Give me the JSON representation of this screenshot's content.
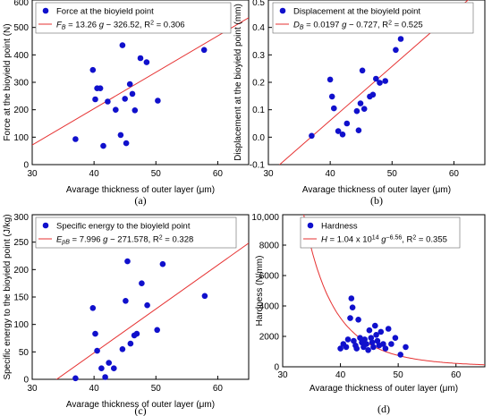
{
  "chart_data": [
    {
      "type": "scatter",
      "panel_label": "(a)",
      "xlabel": "Avarage thickness of outer layer (μm)",
      "ylabel": "Force at the bioyield point (N)",
      "xlim": [
        30,
        65
      ],
      "ylim": [
        0,
        600
      ],
      "xticks": [
        "30",
        "40",
        "50",
        "60"
      ],
      "xtick_values": [
        30,
        40,
        50,
        60
      ],
      "yticks": [
        "0",
        "100",
        "200",
        "300",
        "400",
        "500",
        "600"
      ],
      "ytick_values": [
        0,
        100,
        200,
        300,
        400,
        500,
        600
      ],
      "legend": {
        "placement": "top-left",
        "points_label": "Force at the bioyield point",
        "fit_label": "F_B = 13.26 g − 326.52, R² = 0.306"
      },
      "series": [
        {
          "x": [
            37,
            39.8,
            40.2,
            40.5,
            41,
            41.5,
            42.2,
            43.5,
            44.3,
            44.6,
            45,
            45.2,
            45.8,
            46.2,
            46.6,
            47.5,
            48.5,
            50.3,
            51,
            57.8
          ],
          "y": [
            93,
            345,
            238,
            278,
            278,
            68,
            230,
            200,
            108,
            435,
            240,
            78,
            293,
            258,
            198,
            388,
            373,
            233,
            498,
            418
          ]
        }
      ],
      "fit": {
        "kind": "linear",
        "slope": 13.26,
        "intercept": -326.52
      },
      "colors": {
        "points": "#1010cc",
        "fit": "#e63232"
      }
    },
    {
      "type": "scatter",
      "panel_label": "(b)",
      "xlabel": "Avarage thickness of outer layer (μm)",
      "ylabel": "Displacement at the bioyield point (mm)",
      "xlim": [
        30,
        65
      ],
      "ylim": [
        -0.1,
        0.5
      ],
      "xticks": [
        "30",
        "40",
        "50",
        "60"
      ],
      "xtick_values": [
        30,
        40,
        50,
        60
      ],
      "yticks": [
        "-0.1",
        "0.0",
        "0.1",
        "0.2",
        "0.3",
        "0.4",
        "0.5"
      ],
      "ytick_values": [
        -0.1,
        0.0,
        0.1,
        0.2,
        0.3,
        0.4,
        0.5
      ],
      "legend": {
        "placement": "top-left",
        "points_label": "Displacement at the bioyield point",
        "fit_label": "D_B = 0.0197 g − 0.727, R² = 0.525"
      },
      "series": [
        {
          "x": [
            37,
            40,
            40.3,
            40.6,
            41.3,
            42,
            42.7,
            44.3,
            44.6,
            44.9,
            45.2,
            45.5,
            46.4,
            46.9,
            47.4,
            48,
            48.9,
            50.6,
            51.4
          ],
          "y": [
            0.005,
            0.21,
            0.148,
            0.105,
            0.022,
            0.01,
            0.05,
            0.095,
            0.025,
            0.123,
            0.243,
            0.103,
            0.148,
            0.155,
            0.213,
            0.198,
            0.205,
            0.318,
            0.358
          ]
        }
      ],
      "fit": {
        "kind": "linear",
        "slope": 0.0197,
        "intercept": -0.727
      },
      "colors": {
        "points": "#1010cc",
        "fit": "#e63232"
      }
    },
    {
      "type": "scatter",
      "panel_label": "(c)",
      "xlabel": "Avarage thickness of outer layer (μm)",
      "ylabel": "Specific energy to the bioyield point (J/kg)",
      "xlim": [
        30,
        65
      ],
      "ylim": [
        0,
        300
      ],
      "xticks": [
        "30",
        "40",
        "50",
        "60"
      ],
      "xtick_values": [
        30,
        40,
        50,
        60
      ],
      "yticks": [
        "0",
        "50",
        "100",
        "150",
        "200",
        "250",
        "300"
      ],
      "ytick_values": [
        0,
        50,
        100,
        150,
        200,
        250,
        300
      ],
      "legend": {
        "placement": "top-left",
        "points_label": "Specific energy to the bioyield point",
        "fit_label": "E_pB = 7.996 g − 271.578, R² = 0.328"
      },
      "series": [
        {
          "x": [
            37,
            39.8,
            40.2,
            40.5,
            41.2,
            41.8,
            42.4,
            43.2,
            44.6,
            45.1,
            45.4,
            45.9,
            46.5,
            46.9,
            47.7,
            48.6,
            50.2,
            51.1,
            57.9
          ],
          "y": [
            2,
            130,
            83,
            52,
            20,
            4,
            30,
            20,
            55,
            143,
            215,
            65,
            80,
            83,
            175,
            135,
            90,
            210,
            152
          ]
        }
      ],
      "fit": {
        "kind": "linear",
        "slope": 7.996,
        "intercept": -271.578
      },
      "colors": {
        "points": "#1010cc",
        "fit": "#e63232"
      }
    },
    {
      "type": "scatter",
      "panel_label": "(d)",
      "xlabel": "Avarage thickness of outer layer (μm)",
      "ylabel": "Hardness (N/mm)",
      "xlim": [
        30,
        65
      ],
      "ylim": [
        0,
        10000
      ],
      "xticks": [
        "30",
        "40",
        "50",
        "60"
      ],
      "xtick_values": [
        30,
        40,
        50,
        60
      ],
      "yticks": [
        "0",
        "2000",
        "4000",
        "6000",
        "8000",
        "10,000"
      ],
      "ytick_values": [
        0,
        2000,
        4000,
        6000,
        8000,
        10000
      ],
      "legend": {
        "placement": "top-left",
        "points_label": "Hardness",
        "fit_label": "H = 1.04 x 10^14 g^−6.56, R² = 0.355"
      },
      "series": [
        {
          "x": [
            37,
            40,
            40.5,
            41,
            41.3,
            41.7,
            41.9,
            42.1,
            42.3,
            42.6,
            42.8,
            43.1,
            43.4,
            43.7,
            44,
            44.2,
            44.5,
            44.8,
            45,
            45.3,
            45.5,
            45.7,
            46,
            46.2,
            46.4,
            46.7,
            47,
            47.4,
            47.8,
            48.3,
            48.8,
            49.5,
            50.4,
            51.3
          ],
          "y": [
            8400,
            1200,
            1500,
            1300,
            1800,
            3200,
            4500,
            3900,
            1700,
            1400,
            1200,
            3100,
            1900,
            1600,
            1300,
            1800,
            1500,
            1100,
            2400,
            1900,
            1600,
            1300,
            2700,
            2100,
            1700,
            1400,
            2300,
            1500,
            1200,
            2500,
            1500,
            1900,
            800,
            1300
          ]
        }
      ],
      "fit": {
        "kind": "power",
        "coefficient": 104000000000000.0,
        "exponent": -6.56
      },
      "colors": {
        "points": "#1010cc",
        "fit": "#e63232"
      }
    }
  ]
}
